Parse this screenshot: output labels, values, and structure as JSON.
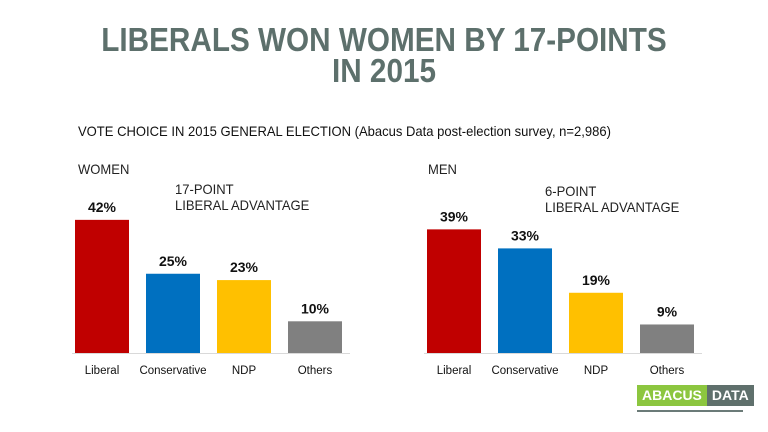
{
  "title_lines": [
    "LIBERALS WON WOMEN BY 17-POINTS",
    "IN 2015"
  ],
  "subtitle": "VOTE CHOICE IN 2015 GENERAL ELECTION (Abacus Data post-election survey, n=2,986)",
  "logo": {
    "left": "ABACUS",
    "right": "DATA",
    "left_color": "#8cc63f",
    "right_color": "#5f706c"
  },
  "chart_data": [
    {
      "type": "bar",
      "title": "WOMEN",
      "annotation": [
        "17-POINT",
        "LIBERAL ADVANTAGE"
      ],
      "categories": [
        "Liberal",
        "Conservative",
        "NDP",
        "Others"
      ],
      "values": [
        42,
        25,
        23,
        10
      ],
      "data_labels": [
        "42%",
        "25%",
        "23%",
        "10%"
      ],
      "colors": [
        "#c00000",
        "#0070c0",
        "#ffc000",
        "#808080"
      ],
      "ylim": [
        0,
        45
      ],
      "grid": false
    },
    {
      "type": "bar",
      "title": "MEN",
      "annotation": [
        "6-POINT",
        "LIBERAL ADVANTAGE"
      ],
      "categories": [
        "Liberal",
        "Conservative",
        "NDP",
        "Others"
      ],
      "values": [
        39,
        33,
        19,
        9
      ],
      "data_labels": [
        "39%",
        "33%",
        "19%",
        "9%"
      ],
      "colors": [
        "#c00000",
        "#0070c0",
        "#ffc000",
        "#808080"
      ],
      "ylim": [
        0,
        45
      ],
      "grid": false
    }
  ]
}
